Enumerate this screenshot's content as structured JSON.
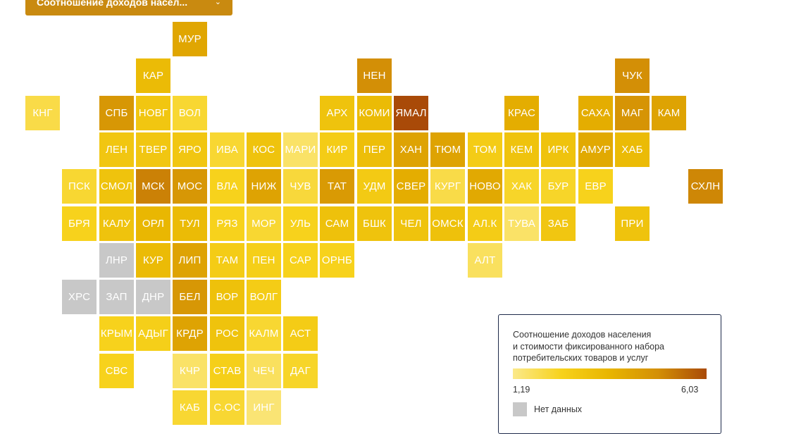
{
  "dropdown": {
    "label": "Соотношение доходов насел...",
    "chevron": "⌄",
    "color": "#c98a10"
  },
  "legend": {
    "title": "Соотношение доходов населения\nи стоимости фиксированного набора\nпотребительских товаров и услуг",
    "min": "1,19",
    "max": "6,03",
    "min_value": 1.19,
    "max_value": 6.03,
    "gradient_start": "#fbe98a",
    "gradient_end": "#a94a08",
    "no_data": "Нет данных",
    "no_data_color": "#c8c8c8"
  },
  "regions": [
    {
      "label": "МУР",
      "col": 4,
      "row": 0,
      "v": 0.6
    },
    {
      "label": "КАР",
      "col": 3,
      "row": 1,
      "v": 0.45
    },
    {
      "label": "НЕН",
      "col": 9,
      "row": 1,
      "v": 0.75
    },
    {
      "label": "ЧУК",
      "col": 16,
      "row": 1,
      "v": 0.75
    },
    {
      "label": "КНГ",
      "col": 0,
      "row": 2,
      "v": 0.15
    },
    {
      "label": "СПБ",
      "col": 2,
      "row": 2,
      "v": 0.7
    },
    {
      "label": "НОВГ",
      "col": 3,
      "row": 2,
      "v": 0.35
    },
    {
      "label": "ВОЛ",
      "col": 4,
      "row": 2,
      "v": 0.2
    },
    {
      "label": "АРХ",
      "col": 8,
      "row": 2,
      "v": 0.38
    },
    {
      "label": "КОМИ",
      "col": 9,
      "row": 2,
      "v": 0.45
    },
    {
      "label": "ЯМАЛ",
      "col": 10,
      "row": 2,
      "v": 1.0
    },
    {
      "label": "КРАС",
      "col": 13,
      "row": 2,
      "v": 0.55
    },
    {
      "label": "САХА",
      "col": 15,
      "row": 2,
      "v": 0.55
    },
    {
      "label": "МАГ",
      "col": 16,
      "row": 2,
      "v": 0.72
    },
    {
      "label": "КАМ",
      "col": 17,
      "row": 2,
      "v": 0.62
    },
    {
      "label": "ЛЕН",
      "col": 2,
      "row": 3,
      "v": 0.35
    },
    {
      "label": "ТВЕР",
      "col": 3,
      "row": 3,
      "v": 0.35
    },
    {
      "label": "ЯРО",
      "col": 4,
      "row": 3,
      "v": 0.35
    },
    {
      "label": "ИВА",
      "col": 5,
      "row": 3,
      "v": 0.2
    },
    {
      "label": "КОС",
      "col": 6,
      "row": 3,
      "v": 0.38
    },
    {
      "label": "МАРИ",
      "col": 7,
      "row": 3,
      "v": 0.08
    },
    {
      "label": "КИР",
      "col": 8,
      "row": 3,
      "v": 0.3
    },
    {
      "label": "ПЕР",
      "col": 9,
      "row": 3,
      "v": 0.42
    },
    {
      "label": "ХАН",
      "col": 10,
      "row": 3,
      "v": 0.62
    },
    {
      "label": "ТЮМ",
      "col": 11,
      "row": 3,
      "v": 0.62
    },
    {
      "label": "ТОМ",
      "col": 12,
      "row": 3,
      "v": 0.3
    },
    {
      "label": "КЕМ",
      "col": 13,
      "row": 3,
      "v": 0.38
    },
    {
      "label": "ИРК",
      "col": 14,
      "row": 3,
      "v": 0.38
    },
    {
      "label": "АМУР",
      "col": 15,
      "row": 3,
      "v": 0.58
    },
    {
      "label": "ХАБ",
      "col": 16,
      "row": 3,
      "v": 0.45
    },
    {
      "label": "ПСК",
      "col": 1,
      "row": 4,
      "v": 0.2
    },
    {
      "label": "СМОЛ",
      "col": 2,
      "row": 4,
      "v": 0.38
    },
    {
      "label": "МСК",
      "col": 3,
      "row": 4,
      "v": 0.8
    },
    {
      "label": "МОС",
      "col": 4,
      "row": 4,
      "v": 0.7
    },
    {
      "label": "ВЛА",
      "col": 5,
      "row": 4,
      "v": 0.25
    },
    {
      "label": "НИЖ",
      "col": 6,
      "row": 4,
      "v": 0.62
    },
    {
      "label": "ЧУВ",
      "col": 7,
      "row": 4,
      "v": 0.18
    },
    {
      "label": "ТАТ",
      "col": 8,
      "row": 4,
      "v": 0.68
    },
    {
      "label": "УДМ",
      "col": 9,
      "row": 4,
      "v": 0.32
    },
    {
      "label": "СВЕР",
      "col": 10,
      "row": 4,
      "v": 0.55
    },
    {
      "label": "КУРГ",
      "col": 11,
      "row": 4,
      "v": 0.15
    },
    {
      "label": "НОВО",
      "col": 12,
      "row": 4,
      "v": 0.58
    },
    {
      "label": "ХАК",
      "col": 13,
      "row": 4,
      "v": 0.22
    },
    {
      "label": "БУР",
      "col": 14,
      "row": 4,
      "v": 0.22
    },
    {
      "label": "ЕВР",
      "col": 15,
      "row": 4,
      "v": 0.25
    },
    {
      "label": "СХЛН",
      "col": 18,
      "row": 4,
      "v": 0.78
    },
    {
      "label": "БРЯ",
      "col": 1,
      "row": 5,
      "v": 0.25
    },
    {
      "label": "КАЛУ",
      "col": 2,
      "row": 5,
      "v": 0.38
    },
    {
      "label": "ОРЛ",
      "col": 3,
      "row": 5,
      "v": 0.48
    },
    {
      "label": "ТУЛ",
      "col": 4,
      "row": 5,
      "v": 0.45
    },
    {
      "label": "РЯЗ",
      "col": 5,
      "row": 5,
      "v": 0.25
    },
    {
      "label": "МОР",
      "col": 6,
      "row": 5,
      "v": 0.2
    },
    {
      "label": "УЛЬ",
      "col": 7,
      "row": 5,
      "v": 0.25
    },
    {
      "label": "САМ",
      "col": 8,
      "row": 5,
      "v": 0.4
    },
    {
      "label": "БШК",
      "col": 9,
      "row": 5,
      "v": 0.38
    },
    {
      "label": "ЧЕЛ",
      "col": 10,
      "row": 5,
      "v": 0.38
    },
    {
      "label": "ОМСК",
      "col": 11,
      "row": 5,
      "v": 0.4
    },
    {
      "label": "АЛ.К",
      "col": 12,
      "row": 5,
      "v": 0.3
    },
    {
      "label": "ТУВА",
      "col": 13,
      "row": 5,
      "v": 0.08
    },
    {
      "label": "ЗАБ",
      "col": 14,
      "row": 5,
      "v": 0.35
    },
    {
      "label": "ПРИ",
      "col": 16,
      "row": 5,
      "v": 0.38
    },
    {
      "label": "ЛНР",
      "col": 2,
      "row": 6,
      "v": null
    },
    {
      "label": "КУР",
      "col": 3,
      "row": 6,
      "v": 0.45
    },
    {
      "label": "ЛИП",
      "col": 4,
      "row": 6,
      "v": 0.62
    },
    {
      "label": "ТАМ",
      "col": 5,
      "row": 6,
      "v": 0.3
    },
    {
      "label": "ПЕН",
      "col": 6,
      "row": 6,
      "v": 0.28
    },
    {
      "label": "САР",
      "col": 7,
      "row": 6,
      "v": 0.25
    },
    {
      "label": "ОРНБ",
      "col": 8,
      "row": 6,
      "v": 0.25
    },
    {
      "label": "АЛТ",
      "col": 12,
      "row": 6,
      "v": 0.1
    },
    {
      "label": "ХРС",
      "col": 1,
      "row": 7,
      "v": null
    },
    {
      "label": "ЗАП",
      "col": 2,
      "row": 7,
      "v": null
    },
    {
      "label": "ДНР",
      "col": 3,
      "row": 7,
      "v": null
    },
    {
      "label": "БЕЛ",
      "col": 4,
      "row": 7,
      "v": 0.7
    },
    {
      "label": "ВОР",
      "col": 5,
      "row": 7,
      "v": 0.4
    },
    {
      "label": "ВОЛГ",
      "col": 6,
      "row": 7,
      "v": 0.3
    },
    {
      "label": "КРЫМ",
      "col": 2,
      "row": 8,
      "v": 0.25
    },
    {
      "label": "АДЫГ",
      "col": 3,
      "row": 8,
      "v": 0.28
    },
    {
      "label": "КРДР",
      "col": 4,
      "row": 8,
      "v": 0.62
    },
    {
      "label": "РОС",
      "col": 5,
      "row": 8,
      "v": 0.38
    },
    {
      "label": "КАЛМ",
      "col": 6,
      "row": 8,
      "v": 0.2
    },
    {
      "label": "АСТ",
      "col": 7,
      "row": 8,
      "v": 0.3
    },
    {
      "label": "СВС",
      "col": 2,
      "row": 9,
      "v": 0.25
    },
    {
      "label": "КЧР",
      "col": 4,
      "row": 9,
      "v": 0.08
    },
    {
      "label": "СТАВ",
      "col": 5,
      "row": 9,
      "v": 0.28
    },
    {
      "label": "ЧЕЧ",
      "col": 6,
      "row": 9,
      "v": 0.1
    },
    {
      "label": "ДАГ",
      "col": 7,
      "row": 9,
      "v": 0.22
    },
    {
      "label": "КАБ",
      "col": 4,
      "row": 10,
      "v": 0.2
    },
    {
      "label": "С.ОС",
      "col": 5,
      "row": 10,
      "v": 0.2
    },
    {
      "label": "ИНГ",
      "col": 6,
      "row": 10,
      "v": 0.05
    }
  ]
}
